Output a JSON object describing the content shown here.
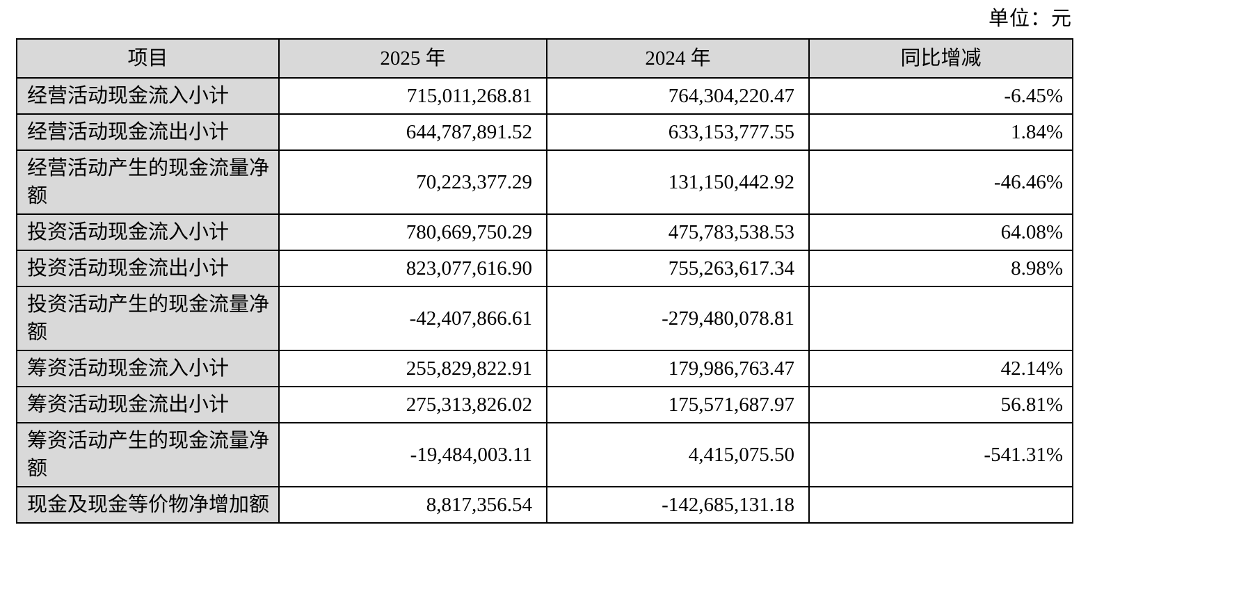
{
  "unit_label": "单位：元",
  "table": {
    "headers": [
      "项目",
      "2025 年",
      "2024 年",
      "同比增减"
    ],
    "rows": [
      {
        "item": "经营活动现金流入小计",
        "y2025": "715,011,268.81",
        "y2024": "764,304,220.47",
        "yoy": "-6.45%"
      },
      {
        "item": "经营活动现金流出小计",
        "y2025": "644,787,891.52",
        "y2024": "633,153,777.55",
        "yoy": "1.84%"
      },
      {
        "item": "经营活动产生的现金流量净额",
        "y2025": "70,223,377.29",
        "y2024": "131,150,442.92",
        "yoy": "-46.46%"
      },
      {
        "item": "投资活动现金流入小计",
        "y2025": "780,669,750.29",
        "y2024": "475,783,538.53",
        "yoy": "64.08%"
      },
      {
        "item": "投资活动现金流出小计",
        "y2025": "823,077,616.90",
        "y2024": "755,263,617.34",
        "yoy": "8.98%"
      },
      {
        "item": "投资活动产生的现金流量净额",
        "y2025": "-42,407,866.61",
        "y2024": "-279,480,078.81",
        "yoy": ""
      },
      {
        "item": "筹资活动现金流入小计",
        "y2025": "255,829,822.91",
        "y2024": "179,986,763.47",
        "yoy": "42.14%"
      },
      {
        "item": "筹资活动现金流出小计",
        "y2025": "275,313,826.02",
        "y2024": "175,571,687.97",
        "yoy": "56.81%"
      },
      {
        "item": "筹资活动产生的现金流量净额",
        "y2025": "-19,484,003.11",
        "y2024": "4,415,075.50",
        "yoy": "-541.31%"
      },
      {
        "item": "现金及现金等价物净增加额",
        "y2025": "8,817,356.54",
        "y2024": "-142,685,131.18",
        "yoy": ""
      }
    ]
  }
}
